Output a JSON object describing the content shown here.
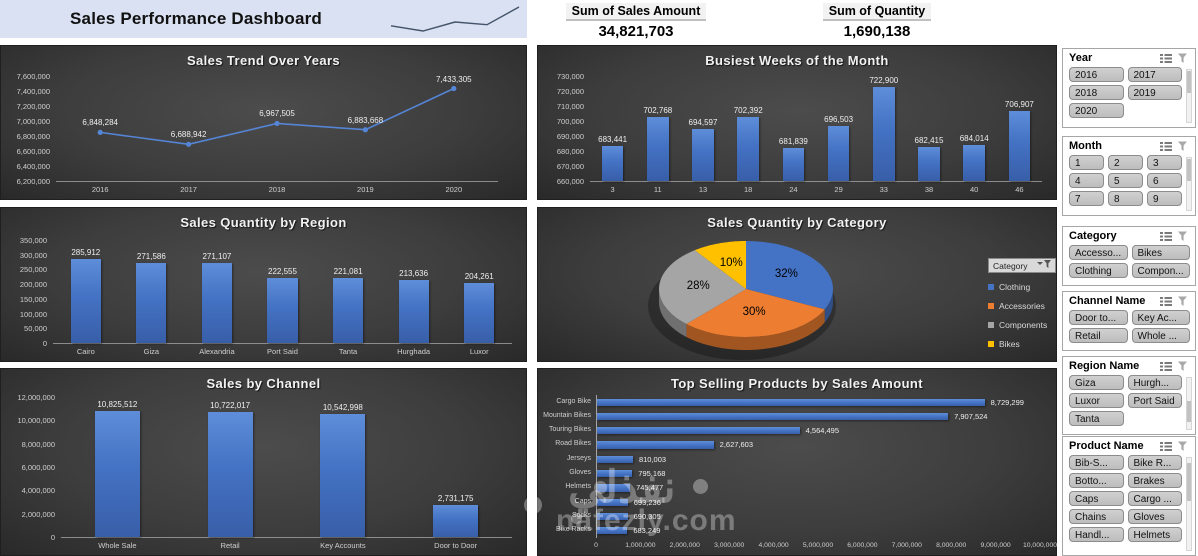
{
  "header": {
    "title": "Sales Performance Dashboard",
    "kpis": [
      {
        "label": "Sum of Sales Amount",
        "value": "34,821,703"
      },
      {
        "label": "Sum of Quantity",
        "value": "1,690,138"
      }
    ]
  },
  "chart_data": [
    {
      "id": "sales-trend",
      "type": "line",
      "title": "Sales Trend Over Years",
      "categories": [
        "2016",
        "2017",
        "2018",
        "2019",
        "2020"
      ],
      "values": [
        6848284,
        6688942,
        6967505,
        6883668,
        7433305
      ],
      "ylim": [
        6200000,
        7600000
      ],
      "ytick_step": 200000,
      "grid": false,
      "legend": "none"
    },
    {
      "id": "busiest-weeks",
      "type": "bar",
      "title": "Busiest Weeks of the Month",
      "categories": [
        "3",
        "11",
        "13",
        "18",
        "24",
        "29",
        "33",
        "38",
        "40",
        "46"
      ],
      "values": [
        683441,
        702768,
        694597,
        702392,
        681839,
        696503,
        722900,
        682415,
        684014,
        706907
      ],
      "ylim": [
        660000,
        730000
      ],
      "ytick_step": 10000,
      "grid": false,
      "legend": "none"
    },
    {
      "id": "region-quantity",
      "type": "bar",
      "title": "Sales Quantity by Region",
      "categories": [
        "Cairo",
        "Giza",
        "Alexandria",
        "Port Said",
        "Tanta",
        "Hurghada",
        "Luxor"
      ],
      "values": [
        285912,
        271586,
        271107,
        222555,
        221081,
        213636,
        204261
      ],
      "ylim": [
        0,
        350000
      ],
      "ytick_step": 50000,
      "grid": false,
      "legend": "none"
    },
    {
      "id": "category-pie",
      "type": "pie",
      "title": "Sales Quantity by Category",
      "legend_button": "Category",
      "legend_position": "right",
      "slices": [
        {
          "label": "Clothing",
          "pct": 32,
          "color": "#4472c4"
        },
        {
          "label": "Accessories",
          "pct": 30,
          "color": "#ed7d31"
        },
        {
          "label": "Components",
          "pct": 28,
          "color": "#a5a5a5"
        },
        {
          "label": "Bikes",
          "pct": 10,
          "color": "#ffc000"
        }
      ]
    },
    {
      "id": "sales-channel",
      "type": "bar",
      "title": "Sales by Channel",
      "categories": [
        "Whole Sale",
        "Retail",
        "Key Accounts",
        "Door to Door"
      ],
      "values": [
        10825512,
        10722017,
        10542998,
        2731175
      ],
      "ylim": [
        0,
        12000000
      ],
      "ytick_step": 2000000,
      "grid": false,
      "legend": "none"
    },
    {
      "id": "top-products",
      "type": "hbar",
      "title": "Top Selling Products by Sales Amount",
      "categories": [
        "Cargo Bike",
        "Mountain Bikes",
        "Touring Bikes",
        "Road Bikes",
        "Jerseys",
        "Gloves",
        "Helmets",
        "Caps",
        "Socks",
        "Bike Racks"
      ],
      "values": [
        8729299,
        7907524,
        4564495,
        2627603,
        810003,
        795168,
        745477,
        693236,
        690305,
        683249
      ],
      "xlim": [
        0,
        10000000
      ],
      "xtick_step": 1000000,
      "grid": false,
      "legend": "none"
    }
  ],
  "slicers": [
    {
      "title": "Year",
      "columns": 2,
      "items": [
        "2016",
        "2017",
        "2018",
        "2019",
        "2020"
      ],
      "scrollbar": true
    },
    {
      "title": "Month",
      "columns": 3,
      "items": [
        "1",
        "2",
        "3",
        "4",
        "5",
        "6",
        "7",
        "8",
        "9"
      ],
      "scrollbar": true
    },
    {
      "title": "Category",
      "columns": 2,
      "items": [
        "Accesso...",
        "Bikes",
        "Clothing",
        "Compon..."
      ],
      "scrollbar": false
    },
    {
      "title": "Channel Name",
      "columns": 2,
      "items": [
        "Door to...",
        "Key Ac...",
        "Retail",
        "Whole ..."
      ],
      "scrollbar": false
    },
    {
      "title": "Region Name",
      "columns": 2,
      "items": [
        "Giza",
        "Hurgh...",
        "Luxor",
        "Port Said",
        "Tanta"
      ],
      "scrollbar": true
    },
    {
      "title": "Product Name",
      "columns": 2,
      "items": [
        "Bib-S...",
        "Bike R...",
        "Botto...",
        "Brakes",
        "Caps",
        "Cargo ...",
        "Chains",
        "Gloves",
        "Handl...",
        "Helmets"
      ],
      "scrollbar": true
    }
  ],
  "watermark": {
    "line1": "نفذلي",
    "line2": "nafezly.com"
  },
  "colors": {
    "bar_blue": "#4472c4",
    "line_blue": "#5585d6",
    "banner_bg": "#d9e1f2",
    "sparkline": "#44546a",
    "panel_title": "#f2f2f2",
    "axis_text": "#cfcfcf",
    "pie_clothing": "#4472c4",
    "pie_accessories": "#ed7d31",
    "pie_components": "#a5a5a5",
    "pie_bikes": "#ffc000"
  }
}
